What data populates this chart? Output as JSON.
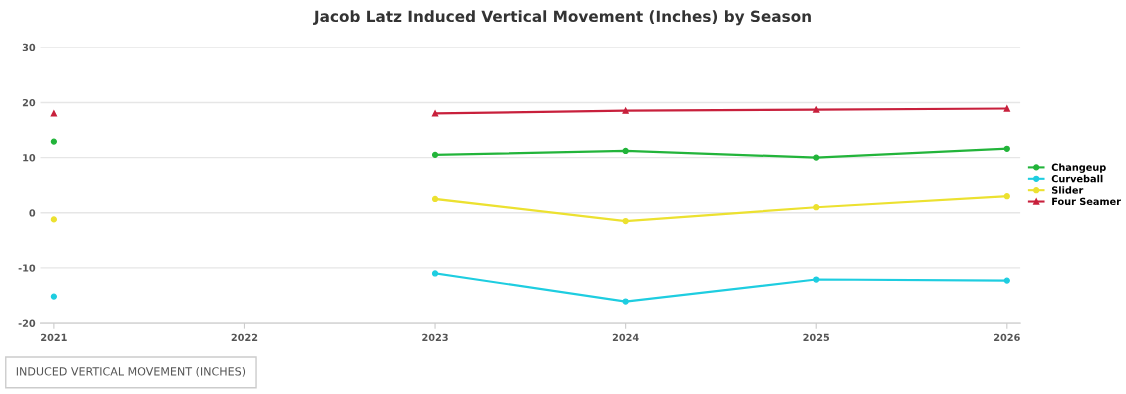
{
  "chart_data": {
    "type": "line",
    "title": "Jacob Latz Induced Vertical Movement (Inches) by Season",
    "categories": [
      "2021",
      "2022",
      "2023",
      "2024",
      "2025",
      "2026"
    ],
    "series": [
      {
        "name": "Changeup",
        "color": "#22b43a",
        "marker": "circle",
        "values": [
          12.9,
          null,
          10.5,
          11.2,
          10.0,
          11.6
        ]
      },
      {
        "name": "Curveball",
        "color": "#1ecde0",
        "marker": "circle",
        "values": [
          -15.2,
          null,
          -11.0,
          -16.1,
          -12.1,
          -12.3
        ]
      },
      {
        "name": "Slider",
        "color": "#ece130",
        "marker": "circle",
        "values": [
          -1.2,
          null,
          2.5,
          -1.5,
          1.0,
          3.0
        ]
      },
      {
        "name": "Four Seamer",
        "color": "#c8203c",
        "marker": "triangle",
        "values": [
          18.0,
          null,
          18.0,
          18.5,
          18.7,
          18.9
        ]
      }
    ],
    "ylim": [
      -20,
      30
    ],
    "yticks": [
      -20,
      -10,
      0,
      10,
      20,
      30
    ],
    "grid": "y",
    "legend": "right",
    "line_style": "solid",
    "annotations": [
      "INDUCED VERTICAL MOVEMENT (INCHES)"
    ]
  }
}
